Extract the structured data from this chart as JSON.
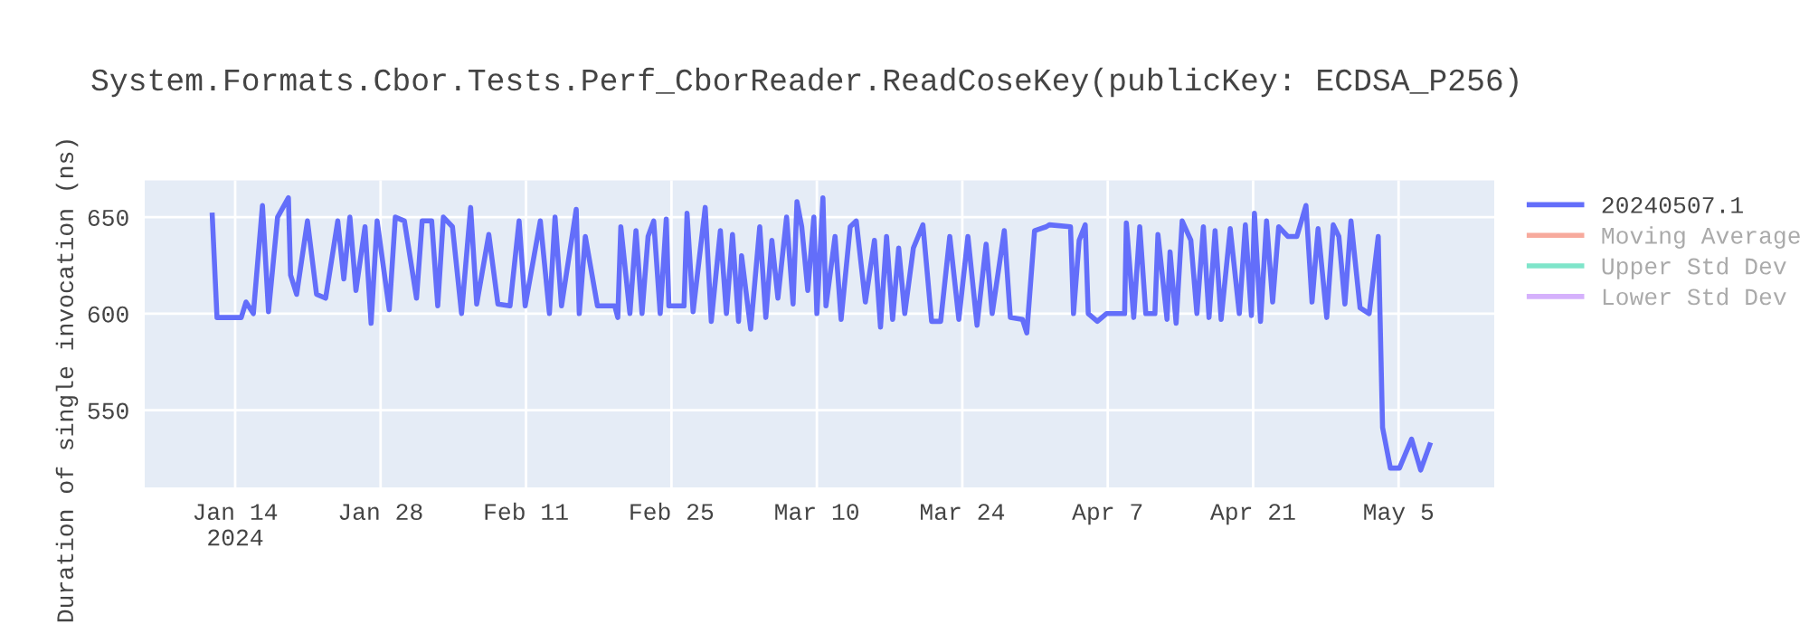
{
  "chart_data": {
    "type": "line",
    "title": "System.Formats.Cbor.Tests.Perf_CborReader.ReadCoseKey(publicKey: ECDSA_P256)",
    "ylabel": "Duration of single invocation (ns)",
    "xlim": [
      "2024-01-05T07:00",
      "2024-05-14T05:00"
    ],
    "xticks": [
      {
        "value": "2024-01-14",
        "label": "Jan 14\n2024"
      },
      {
        "value": "2024-01-28",
        "label": "Jan 28"
      },
      {
        "value": "2024-02-11",
        "label": "Feb 11"
      },
      {
        "value": "2024-02-25",
        "label": "Feb 25"
      },
      {
        "value": "2024-03-10",
        "label": "Mar 10"
      },
      {
        "value": "2024-03-24",
        "label": "Mar 24"
      },
      {
        "value": "2024-04-07",
        "label": "Apr 7"
      },
      {
        "value": "2024-04-21",
        "label": "Apr 21"
      },
      {
        "value": "2024-05-05",
        "label": "May 5"
      }
    ],
    "ylim": [
      510,
      669
    ],
    "yticks": [
      550,
      600,
      650
    ],
    "grid": true,
    "legend": "top right",
    "marker": "none",
    "line_style": "solid",
    "x": [
      "2024-01-11T19:00",
      "2024-01-12T06:00",
      "2024-01-14T14:00",
      "2024-01-15T01:00",
      "2024-01-15T18:00",
      "2024-01-16T15:00",
      "2024-01-17T05:00",
      "2024-01-18T02:00",
      "2024-01-19T03:00",
      "2024-01-19T08:00",
      "2024-01-19T22:00",
      "2024-01-20T23:00",
      "2024-01-21T20:00",
      "2024-01-22T17:00",
      "2024-01-23T21:00",
      "2024-01-24T11:00",
      "2024-01-25T01:00",
      "2024-01-25T15:00",
      "2024-01-26T12:00",
      "2024-01-27T02:00",
      "2024-01-27T16:00",
      "2024-01-28T20:00",
      "2024-01-29T10:00",
      "2024-01-30T07:00",
      "2024-01-31T11:00",
      "2024-02-01T00:00",
      "2024-02-01T22:00",
      "2024-02-02T12:00",
      "2024-02-03T01:00",
      "2024-02-03T22:00",
      "2024-02-04T19:00",
      "2024-02-05T16:00",
      "2024-02-06T06:00",
      "2024-02-07T10:00",
      "2024-02-08T07:00",
      "2024-02-09T11:00",
      "2024-02-10T08:00",
      "2024-02-10T22:00",
      "2024-02-12T09:00",
      "2024-02-13T06:00",
      "2024-02-13T19:00",
      "2024-02-14T10:00",
      "2024-02-15T20:00",
      "2024-02-16T03:00",
      "2024-02-16T17:00",
      "2024-02-17T21:00",
      "2024-02-19T13:00",
      "2024-02-19T20:00",
      "2024-02-20T03:00",
      "2024-02-21T00:00",
      "2024-02-21T14:00",
      "2024-02-22T04:00",
      "2024-02-22T18:00",
      "2024-02-23T07:00",
      "2024-02-23T22:00",
      "2024-02-24T12:00",
      "2024-02-24T18:00",
      "2024-02-26T05:00",
      "2024-02-26T12:00",
      "2024-02-27T02:00",
      "2024-02-28T06:00",
      "2024-02-28T20:00",
      "2024-02-29T17:00",
      "2024-03-01T07:00",
      "2024-03-01T21:00",
      "2024-03-02T11:00",
      "2024-03-02T18:00",
      "2024-03-03T15:00",
      "2024-03-04T12:00",
      "2024-03-05T02:00",
      "2024-03-05T16:00",
      "2024-03-06T06:00",
      "2024-03-07T02:00",
      "2024-03-07T17:00",
      "2024-03-08T02:00",
      "2024-03-08T13:00",
      "2024-03-09T03:00",
      "2024-03-09T17:00",
      "2024-03-10T00:00",
      "2024-03-10T14:00",
      "2024-03-10T21:00",
      "2024-03-11T18:00",
      "2024-03-12T08:00",
      "2024-03-13T05:00",
      "2024-03-13T19:00",
      "2024-03-14T16:00",
      "2024-03-15T13:00",
      "2024-03-16T03:00",
      "2024-03-16T17:00",
      "2024-03-17T07:00",
      "2024-03-17T21:00",
      "2024-03-18T11:00",
      "2024-03-19T07:00",
      "2024-03-20T05:00",
      "2024-03-21T01:00",
      "2024-03-21T22:00",
      "2024-03-22T19:00",
      "2024-03-23T16:00",
      "2024-03-24T13:00",
      "2024-03-25T10:00",
      "2024-03-26T07:00",
      "2024-03-26T21:00",
      "2024-03-28T01:00",
      "2024-03-28T15:00",
      "2024-03-29T19:00",
      "2024-03-30T05:00",
      "2024-03-30T23:00",
      "2024-04-01T02:00",
      "2024-04-01T09:00",
      "2024-04-03T10:00",
      "2024-04-03T17:00",
      "2024-04-04T06:00",
      "2024-04-04T20:00",
      "2024-04-05T03:00",
      "2024-04-06T00:00",
      "2024-04-06T21:00",
      "2024-04-08T15:00",
      "2024-04-08T19:00",
      "2024-04-09T12:00",
      "2024-04-10T02:00",
      "2024-04-10T16:00",
      "2024-04-11T13:00",
      "2024-04-11T20:00",
      "2024-04-12T17:00",
      "2024-04-13T00:00",
      "2024-04-13T14:00",
      "2024-04-14T04:00",
      "2024-04-15T00:00",
      "2024-04-15T14:00",
      "2024-04-16T05:00",
      "2024-04-16T18:00",
      "2024-04-17T08:00",
      "2024-04-17T22:00",
      "2024-04-18T19:00",
      "2024-04-19T16:00",
      "2024-04-20T06:00",
      "2024-04-20T20:00",
      "2024-04-21T03:00",
      "2024-04-21T17:00",
      "2024-04-22T07:00",
      "2024-04-22T21:00",
      "2024-04-23T11:00",
      "2024-04-24T08:00",
      "2024-04-25T05:00",
      "2024-04-26T02:00",
      "2024-04-26T16:00",
      "2024-04-27T06:00",
      "2024-04-28T02:00",
      "2024-04-28T17:00",
      "2024-04-29T06:00",
      "2024-04-29T20:00",
      "2024-04-30T10:00",
      "2024-05-01T07:00",
      "2024-05-02T04:00",
      "2024-05-03T01:00",
      "2024-05-03T11:00",
      "2024-05-04T05:00",
      "2024-05-05T02:00",
      "2024-05-06T06:00",
      "2024-05-07T03:00",
      "2024-05-08T00:00"
    ],
    "series": [
      {
        "name": "20240507.1",
        "color": "#636efa",
        "values": [
          651,
          598,
          598,
          606,
          600,
          656,
          601,
          650,
          660,
          620,
          610,
          648,
          610,
          608,
          648,
          618,
          650,
          612,
          645,
          595,
          648,
          602,
          650,
          648,
          608,
          648,
          648,
          604,
          650,
          645,
          600,
          655,
          605,
          641,
          605,
          604,
          648,
          604,
          648,
          600,
          650,
          604,
          654,
          600,
          640,
          604,
          604,
          598,
          645,
          600,
          643,
          600,
          640,
          648,
          600,
          649,
          604,
          604,
          652,
          601,
          655,
          596,
          643,
          600,
          641,
          596,
          630,
          592,
          645,
          598,
          638,
          608,
          650,
          605,
          658,
          645,
          612,
          650,
          600,
          660,
          604,
          640,
          597,
          645,
          648,
          606,
          638,
          593,
          640,
          597,
          634,
          600,
          634,
          646,
          596,
          596,
          640,
          597,
          640,
          594,
          636,
          600,
          643,
          598,
          597,
          590,
          643,
          645,
          646,
          645,
          600,
          638,
          646,
          600,
          596,
          600,
          600,
          647,
          598,
          645,
          600,
          600,
          641,
          597,
          632,
          595,
          648,
          638,
          600,
          645,
          598,
          643,
          597,
          644,
          600,
          646,
          599,
          652,
          596,
          648,
          606,
          645,
          640,
          640,
          656,
          606,
          644,
          598,
          646,
          640,
          605,
          648,
          603,
          600,
          640,
          541,
          520,
          520,
          535,
          519,
          532
        ]
      },
      {
        "name": "Moving Average",
        "color": "#ef553b",
        "values": [
          null,
          null,
          null,
          null,
          null,
          null,
          null,
          null,
          null,
          null,
          null,
          null,
          null,
          null,
          null,
          null,
          null,
          null,
          null,
          null,
          null,
          null,
          null,
          null,
          null,
          null,
          null,
          null,
          null,
          null,
          null,
          null,
          null,
          null,
          null,
          null,
          null,
          null,
          null,
          null,
          null,
          null,
          null,
          null,
          null,
          null,
          null,
          null,
          null,
          null,
          null,
          null,
          null,
          null,
          null,
          null,
          null,
          null,
          null,
          null,
          null,
          null,
          null,
          null,
          null,
          null,
          null,
          null,
          null,
          null,
          null,
          null,
          null,
          null,
          null,
          null,
          null,
          null,
          null,
          null,
          null,
          null,
          null,
          null,
          null,
          null,
          null,
          null,
          null,
          null,
          null,
          null,
          null,
          null,
          null,
          null,
          null,
          null,
          null,
          null,
          null,
          null,
          null,
          null,
          null,
          null,
          null,
          null,
          null,
          null,
          null,
          null,
          null,
          null,
          null,
          null,
          null,
          null,
          null,
          null,
          null,
          null,
          null,
          null,
          null,
          null,
          null,
          null,
          null,
          null,
          null,
          null,
          null,
          null,
          null,
          null,
          null,
          null,
          null,
          null,
          null,
          null,
          null,
          null,
          null,
          null,
          null,
          null,
          null,
          null,
          null,
          null,
          null,
          null,
          null,
          null,
          null,
          null,
          null,
          null,
          null
        ]
      },
      {
        "name": "Upper Std Dev",
        "color": "#00cc96",
        "values": [
          null,
          null,
          null,
          null,
          null,
          null,
          null,
          null,
          null,
          null,
          null,
          null,
          null,
          null,
          null,
          null,
          null,
          null,
          null,
          null,
          null,
          null,
          null,
          null,
          null,
          null,
          null,
          null,
          null,
          null,
          null,
          null,
          null,
          null,
          null,
          null,
          null,
          null,
          null,
          null,
          null,
          null,
          null,
          null,
          null,
          null,
          null,
          null,
          null,
          null,
          null,
          null,
          null,
          null,
          null,
          null,
          null,
          null,
          null,
          null,
          null,
          null,
          null,
          null,
          null,
          null,
          null,
          null,
          null,
          null,
          null,
          null,
          null,
          null,
          null,
          null,
          null,
          null,
          null,
          null,
          null,
          null,
          null,
          null,
          null,
          null,
          null,
          null,
          null,
          null,
          null,
          null,
          null,
          null,
          null,
          null,
          null,
          null,
          null,
          null,
          null,
          null,
          null,
          null,
          null,
          null,
          null,
          null,
          null,
          null,
          null,
          null,
          null,
          null,
          null,
          null,
          null,
          null,
          null,
          null,
          null,
          null,
          null,
          null,
          null,
          null,
          null,
          null,
          null,
          null,
          null,
          null,
          null,
          null,
          null,
          null,
          null,
          null,
          null,
          null,
          null,
          null,
          null,
          null,
          null,
          null,
          null,
          null,
          null,
          null,
          null,
          null,
          null,
          null,
          null,
          null,
          null,
          null,
          null,
          null,
          null
        ]
      },
      {
        "name": "Lower Std Dev",
        "color": "#ab63fa",
        "values": [
          null,
          null,
          null,
          null,
          null,
          null,
          null,
          null,
          null,
          null,
          null,
          null,
          null,
          null,
          null,
          null,
          null,
          null,
          null,
          null,
          null,
          null,
          null,
          null,
          null,
          null,
          null,
          null,
          null,
          null,
          null,
          null,
          null,
          null,
          null,
          null,
          null,
          null,
          null,
          null,
          null,
          null,
          null,
          null,
          null,
          null,
          null,
          null,
          null,
          null,
          null,
          null,
          null,
          null,
          null,
          null,
          null,
          null,
          null,
          null,
          null,
          null,
          null,
          null,
          null,
          null,
          null,
          null,
          null,
          null,
          null,
          null,
          null,
          null,
          null,
          null,
          null,
          null,
          null,
          null,
          null,
          null,
          null,
          null,
          null,
          null,
          null,
          null,
          null,
          null,
          null,
          null,
          null,
          null,
          null,
          null,
          null,
          null,
          null,
          null,
          null,
          null,
          null,
          null,
          null,
          null,
          null,
          null,
          null,
          null,
          null,
          null,
          null,
          null,
          null,
          null,
          null,
          null,
          null,
          null,
          null,
          null,
          null,
          null,
          null,
          null,
          null,
          null,
          null,
          null,
          null,
          null,
          null,
          null,
          null,
          null,
          null,
          null,
          null,
          null,
          null,
          null,
          null,
          null,
          null,
          null,
          null,
          null,
          null,
          null,
          null,
          null,
          null,
          null,
          null,
          null,
          null,
          null,
          null,
          null,
          null
        ]
      }
    ]
  }
}
